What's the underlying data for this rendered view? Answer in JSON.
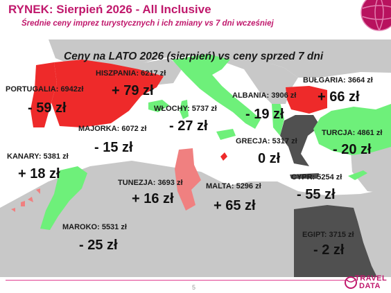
{
  "header": {
    "title": "RYNEK: Sierpień 2026 - All Inclusive",
    "subtitle": "Średnie ceny imprez turystycznych i ich zmiany vs 7 dni wcześniej"
  },
  "map_heading": "Ceny na LATO 2026 (sierpień) vs ceny sprzed 7 dni",
  "countries": [
    {
      "label": "PORTUGALIA: 6942zł",
      "change": "- 59 zł",
      "status": "decrease"
    },
    {
      "label": "HISZPANIA: 6217 zł",
      "change": "+ 79 zł",
      "status": "increase"
    },
    {
      "label": "MAJORKA: 6072 zł",
      "change": "- 15 zł",
      "status": "decrease"
    },
    {
      "label": "KANARY: 5381 zł",
      "change": "+ 18 zł",
      "status": "increase"
    },
    {
      "label": "MAROKO: 5531 zł",
      "change": "- 25 zł",
      "status": "decrease"
    },
    {
      "label": "WŁOCHY: 5737 zł",
      "change": "- 27 zł",
      "status": "decrease"
    },
    {
      "label": "TUNEZJA: 3693 zł",
      "change": "+ 16 zł",
      "status": "increase"
    },
    {
      "label": "MALTA: 5296 zł",
      "change": "+ 65 zł",
      "status": "increase"
    },
    {
      "label": "ALBANIA: 3906 zł",
      "change": "- 19 zł",
      "status": "decrease"
    },
    {
      "label": "GRECJA: 5317 zł",
      "change": "0 zł",
      "status": "unchanged"
    },
    {
      "label": "BUŁGARIA: 3664 zł",
      "change": "+ 66 zł",
      "status": "increase"
    },
    {
      "label": "TURCJA: 4861 zł",
      "change": "- 20 zł",
      "status": "decrease"
    },
    {
      "label": "CYPR: 5254 zł",
      "change": "- 55 zł",
      "status": "decrease"
    },
    {
      "label": "EGIPT: 3715 zł",
      "change": "- 2 zł",
      "status": "decrease"
    }
  ],
  "colors": {
    "accent": "#c0186c",
    "increase": "#ee2a2a",
    "increase_light": "#f08080",
    "decrease": "#6ef07a",
    "unchanged": "#505050",
    "land": "#c8c8c8",
    "sea": "#ffffff"
  },
  "footer": {
    "page_number": "5",
    "logo_line1": "TRAVEL",
    "logo_line2": "DATA"
  }
}
